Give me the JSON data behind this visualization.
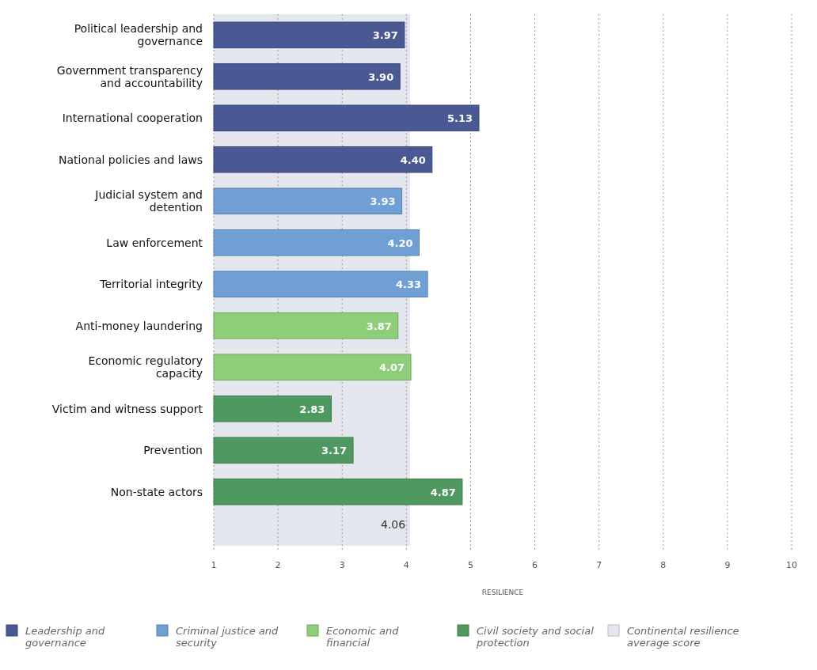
{
  "chart_data": {
    "type": "bar",
    "orientation": "horizontal",
    "xlabel": "RESILIENCE",
    "categories": [
      "Political leadership and governance",
      "Government transparency and accountability",
      "International cooperation",
      "National policies and laws",
      "Judicial system and detention",
      "Law enforcement",
      "Territorial integrity",
      "Anti-money laundering",
      "Economic regulatory capacity",
      "Victim and witness support",
      "Prevention",
      "Non-state actors"
    ],
    "series": [
      {
        "name": "Leadership and governance",
        "color": "#4a5893",
        "values": [
          3.97,
          3.9,
          5.13,
          4.4,
          null,
          null,
          null,
          null,
          null,
          null,
          null,
          null
        ],
        "value_labels": [
          "3.97",
          "3.90",
          "5.13",
          "4.40",
          null,
          null,
          null,
          null,
          null,
          null,
          null,
          null
        ]
      },
      {
        "name": "Criminal justice and security",
        "color": "#6f9fd4",
        "values": [
          null,
          null,
          null,
          null,
          3.93,
          4.2,
          4.33,
          null,
          null,
          null,
          null,
          null
        ],
        "value_labels": [
          null,
          null,
          null,
          null,
          "3.93",
          "4.20",
          "4.33",
          null,
          null,
          null,
          null,
          null
        ]
      },
      {
        "name": "Economic and financial",
        "color": "#8fce78",
        "values": [
          null,
          null,
          null,
          null,
          null,
          null,
          null,
          3.87,
          4.07,
          null,
          null,
          null
        ],
        "value_labels": [
          null,
          null,
          null,
          null,
          null,
          null,
          null,
          "3.87",
          "4.07",
          null,
          null,
          null
        ]
      },
      {
        "name": "Civil society and social protection",
        "color": "#4f9860",
        "values": [
          null,
          null,
          null,
          null,
          null,
          null,
          null,
          null,
          null,
          2.83,
          3.17,
          4.87
        ],
        "value_labels": [
          null,
          null,
          null,
          null,
          null,
          null,
          null,
          null,
          null,
          "2.83",
          "3.17",
          "4.87"
        ]
      }
    ],
    "bands": [
      {
        "axis": "x",
        "from": 1,
        "to": 4.06,
        "label": "Continental resilience average score",
        "color": "#e5e7ef"
      }
    ],
    "annotations": [
      {
        "text": "4.06",
        "x": 4.06
      }
    ],
    "xlim": [
      1,
      10
    ],
    "xticks": [
      1,
      2,
      3,
      4,
      5,
      6,
      7,
      8,
      9,
      10
    ],
    "grid": "x",
    "legend": "bottom"
  }
}
